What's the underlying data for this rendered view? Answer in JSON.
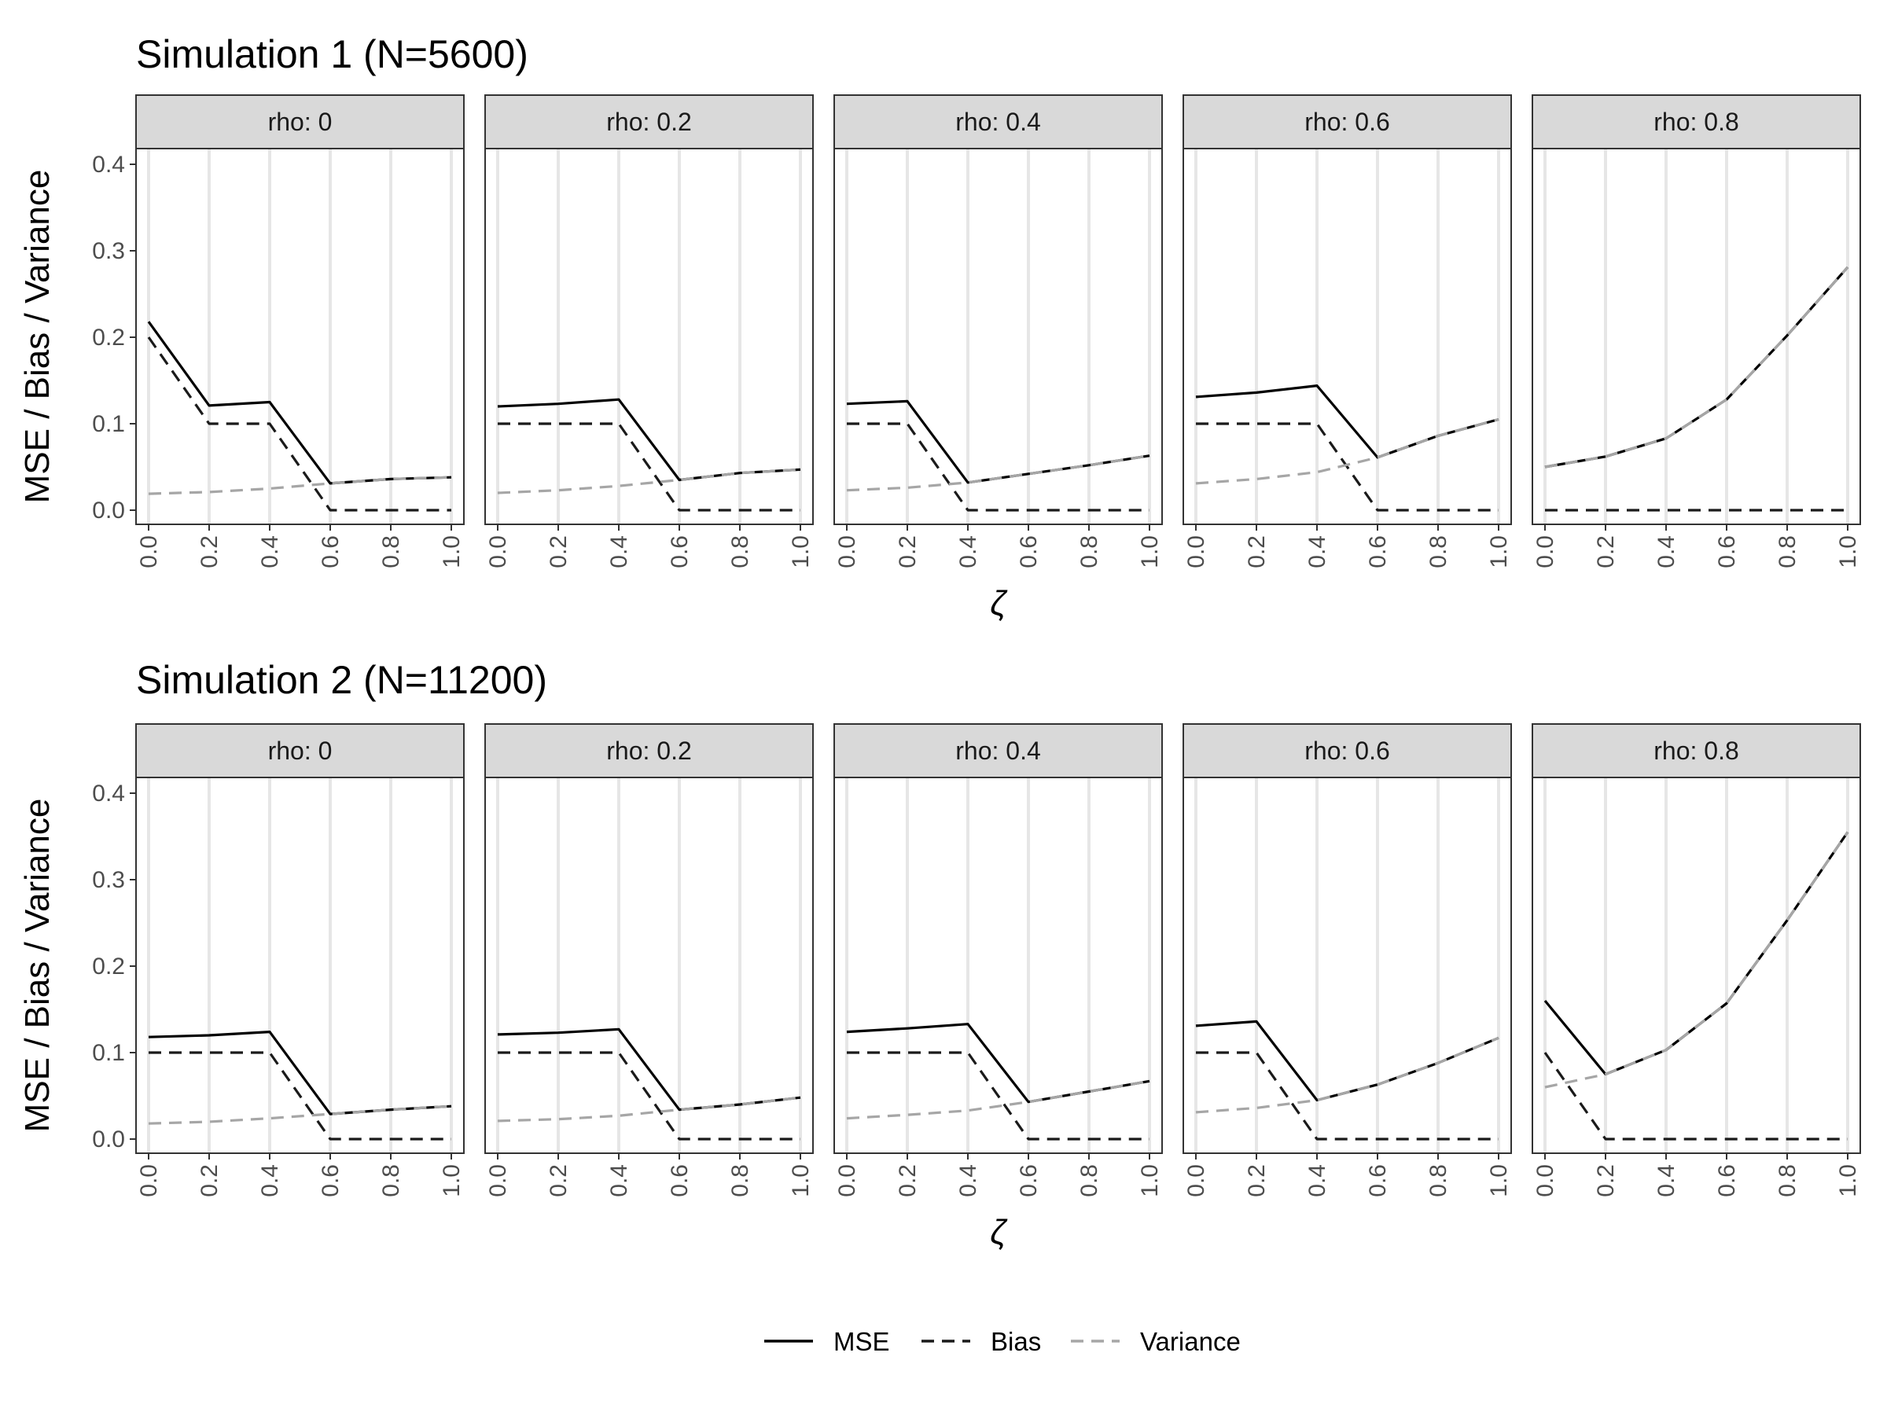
{
  "colors": {
    "mse": "#000000",
    "bias": "#1a1a1a",
    "variance": "#a6a6a6",
    "strip_fill": "#d9d9d9",
    "grid": "#e6e6e6",
    "panel_border": "#333333"
  },
  "legend": {
    "position": "bottom",
    "items": [
      {
        "label": "MSE",
        "key": "mse",
        "style": "solid"
      },
      {
        "label": "Bias",
        "key": "bias",
        "style": "dashed"
      },
      {
        "label": "Variance",
        "key": "variance",
        "style": "dashed"
      }
    ]
  },
  "chart_data": [
    {
      "type": "line",
      "title": "Simulation 1 (N=5600)",
      "xlabel": "ζ",
      "ylabel": "MSE / Bias / Variance",
      "xlim": [
        0,
        1
      ],
      "ylim": [
        0,
        0.4
      ],
      "x_ticks": [
        "0.0",
        "0.2",
        "0.4",
        "0.6",
        "0.8",
        "1.0"
      ],
      "y_ticks": [
        "0.0",
        "0.1",
        "0.2",
        "0.3",
        "0.4"
      ],
      "x": [
        0,
        0.2,
        0.4,
        0.6,
        0.8,
        1.0
      ],
      "facets": [
        {
          "label": "rho: 0",
          "series": [
            {
              "name": "MSE",
              "values": [
                0.218,
                0.121,
                0.125,
                0.031,
                0.036,
                0.038
              ]
            },
            {
              "name": "Bias",
              "values": [
                0.2,
                0.1,
                0.1,
                0.0,
                0.0,
                0.0
              ]
            },
            {
              "name": "Variance",
              "values": [
                0.019,
                0.021,
                0.025,
                0.031,
                0.036,
                0.038
              ]
            }
          ]
        },
        {
          "label": "rho: 0.2",
          "series": [
            {
              "name": "MSE",
              "values": [
                0.12,
                0.123,
                0.128,
                0.035,
                0.043,
                0.047
              ]
            },
            {
              "name": "Bias",
              "values": [
                0.1,
                0.1,
                0.1,
                0.0,
                0.0,
                0.0
              ]
            },
            {
              "name": "Variance",
              "values": [
                0.02,
                0.023,
                0.028,
                0.035,
                0.043,
                0.047
              ]
            }
          ]
        },
        {
          "label": "rho: 0.4",
          "series": [
            {
              "name": "MSE",
              "values": [
                0.123,
                0.126,
                0.032,
                0.042,
                0.052,
                0.063
              ]
            },
            {
              "name": "Bias",
              "values": [
                0.1,
                0.1,
                0.0,
                0.0,
                0.0,
                0.0
              ]
            },
            {
              "name": "Variance",
              "values": [
                0.023,
                0.026,
                0.032,
                0.042,
                0.052,
                0.063
              ]
            }
          ]
        },
        {
          "label": "rho: 0.6",
          "series": [
            {
              "name": "MSE",
              "values": [
                0.131,
                0.136,
                0.144,
                0.061,
                0.086,
                0.105
              ]
            },
            {
              "name": "Bias",
              "values": [
                0.1,
                0.1,
                0.1,
                0.0,
                0.0,
                0.0
              ]
            },
            {
              "name": "Variance",
              "values": [
                0.031,
                0.036,
                0.044,
                0.061,
                0.086,
                0.105
              ]
            }
          ]
        },
        {
          "label": "rho: 0.8",
          "series": [
            {
              "name": "MSE",
              "values": [
                0.05,
                0.062,
                0.083,
                0.128,
                0.202,
                0.281
              ]
            },
            {
              "name": "Bias",
              "values": [
                0.0,
                0.0,
                0.0,
                0.0,
                0.0,
                0.0
              ]
            },
            {
              "name": "Variance",
              "values": [
                0.05,
                0.062,
                0.083,
                0.128,
                0.202,
                0.281
              ]
            }
          ]
        }
      ]
    },
    {
      "type": "line",
      "title": "Simulation 2 (N=11200)",
      "xlabel": "ζ",
      "ylabel": "MSE / Bias / Variance",
      "xlim": [
        0,
        1
      ],
      "ylim": [
        0,
        0.4
      ],
      "x_ticks": [
        "0.0",
        "0.2",
        "0.4",
        "0.6",
        "0.8",
        "1.0"
      ],
      "y_ticks": [
        "0.0",
        "0.1",
        "0.2",
        "0.3",
        "0.4"
      ],
      "x": [
        0,
        0.2,
        0.4,
        0.6,
        0.8,
        1.0
      ],
      "facets": [
        {
          "label": "rho: 0",
          "series": [
            {
              "name": "MSE",
              "values": [
                0.118,
                0.12,
                0.124,
                0.029,
                0.034,
                0.038
              ]
            },
            {
              "name": "Bias",
              "values": [
                0.1,
                0.1,
                0.1,
                0.0,
                0.0,
                0.0
              ]
            },
            {
              "name": "Variance",
              "values": [
                0.018,
                0.02,
                0.024,
                0.029,
                0.034,
                0.038
              ]
            }
          ]
        },
        {
          "label": "rho: 0.2",
          "series": [
            {
              "name": "MSE",
              "values": [
                0.121,
                0.123,
                0.127,
                0.034,
                0.04,
                0.048
              ]
            },
            {
              "name": "Bias",
              "values": [
                0.1,
                0.1,
                0.1,
                0.0,
                0.0,
                0.0
              ]
            },
            {
              "name": "Variance",
              "values": [
                0.021,
                0.023,
                0.027,
                0.034,
                0.04,
                0.048
              ]
            }
          ]
        },
        {
          "label": "rho: 0.4",
          "series": [
            {
              "name": "MSE",
              "values": [
                0.124,
                0.128,
                0.133,
                0.043,
                0.055,
                0.067
              ]
            },
            {
              "name": "Bias",
              "values": [
                0.1,
                0.1,
                0.1,
                0.0,
                0.0,
                0.0
              ]
            },
            {
              "name": "Variance",
              "values": [
                0.024,
                0.028,
                0.033,
                0.043,
                0.055,
                0.067
              ]
            }
          ]
        },
        {
          "label": "rho: 0.6",
          "series": [
            {
              "name": "MSE",
              "values": [
                0.131,
                0.136,
                0.045,
                0.063,
                0.088,
                0.117
              ]
            },
            {
              "name": "Bias",
              "values": [
                0.1,
                0.1,
                0.0,
                0.0,
                0.0,
                0.0
              ]
            },
            {
              "name": "Variance",
              "values": [
                0.031,
                0.036,
                0.045,
                0.063,
                0.088,
                0.117
              ]
            }
          ]
        },
        {
          "label": "rho: 0.8",
          "series": [
            {
              "name": "MSE",
              "values": [
                0.16,
                0.075,
                0.103,
                0.157,
                0.253,
                0.355
              ]
            },
            {
              "name": "Bias",
              "values": [
                0.1,
                0.0,
                0.0,
                0.0,
                0.0,
                0.0
              ]
            },
            {
              "name": "Variance",
              "values": [
                0.06,
                0.075,
                0.103,
                0.157,
                0.253,
                0.355
              ]
            }
          ]
        }
      ]
    }
  ]
}
